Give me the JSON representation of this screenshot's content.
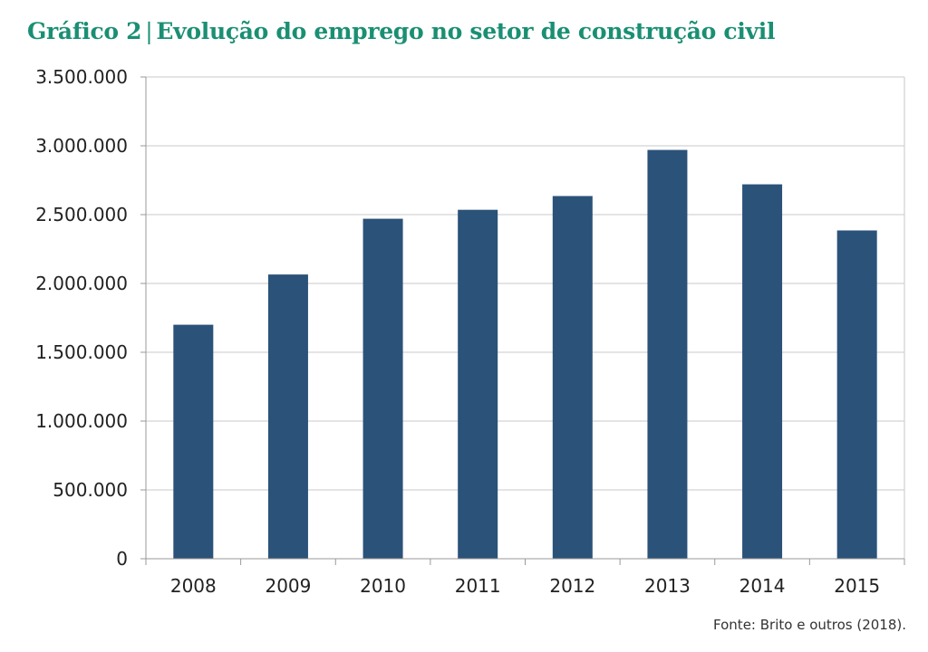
{
  "header": {
    "chart_number": "Gráfico 2",
    "separator": "|",
    "chart_title": "Evolução do emprego no setor de construção civil"
  },
  "chart_data": {
    "type": "bar",
    "title": "Gráfico 2 | Evolução do emprego no setor de construção civil",
    "xlabel": "",
    "ylabel": "",
    "categories": [
      "2008",
      "2009",
      "2010",
      "2011",
      "2012",
      "2013",
      "2014",
      "2015"
    ],
    "values": [
      1700000,
      2065000,
      2470000,
      2535000,
      2635000,
      2970000,
      2720000,
      2385000
    ],
    "ylim": [
      0,
      3500000
    ],
    "yticks": [
      "0",
      "500.000",
      "1.000.000",
      "1.500.000",
      "2.000.000",
      "2.500.000",
      "3.000.000",
      "3.500.000"
    ],
    "ytick_values": [
      0,
      500000,
      1000000,
      1500000,
      2000000,
      2500000,
      3000000,
      3500000
    ],
    "grid": true,
    "legend": "none",
    "bar_color": "#2b5279",
    "grid_color": "#c8c8c8"
  },
  "footer": {
    "source": "Fonte: Brito e outros (2018)."
  }
}
